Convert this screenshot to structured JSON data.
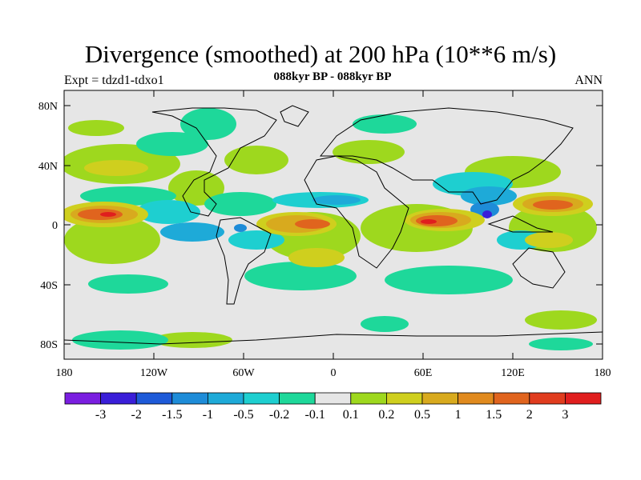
{
  "map": {
    "title": "Divergence (smoothed) at 200 hPa (10**6 m/s)",
    "left_string": "Expt = tdzd1-tdxo1",
    "center_string": "088kyr BP - 088kyr BP",
    "right_string": "ANN",
    "lat_ticks": [
      "80N",
      "40N",
      "0",
      "40S",
      "80S"
    ],
    "lon_ticks": [
      "180",
      "120W",
      "60W",
      "0",
      "60E",
      "120E",
      "180"
    ],
    "ocean_color": "#e6e6e6"
  },
  "colorbar": {
    "colors": [
      "#7a1ee0",
      "#3a1ed8",
      "#1e5ad8",
      "#1e8cd8",
      "#1eaad8",
      "#1ecfd0",
      "#1ed89a",
      "#e6e6e6",
      "#9ed81e",
      "#cfcf1e",
      "#d8aa1e",
      "#e08a1e",
      "#e0641e",
      "#e03c1e",
      "#e01e1e"
    ],
    "labels": [
      "-3",
      "-2",
      "-1.5",
      "-1",
      "-0.5",
      "-0.2",
      "-0.1",
      "0.1",
      "0.2",
      "0.5",
      "1",
      "1.5",
      "2",
      "3"
    ]
  }
}
